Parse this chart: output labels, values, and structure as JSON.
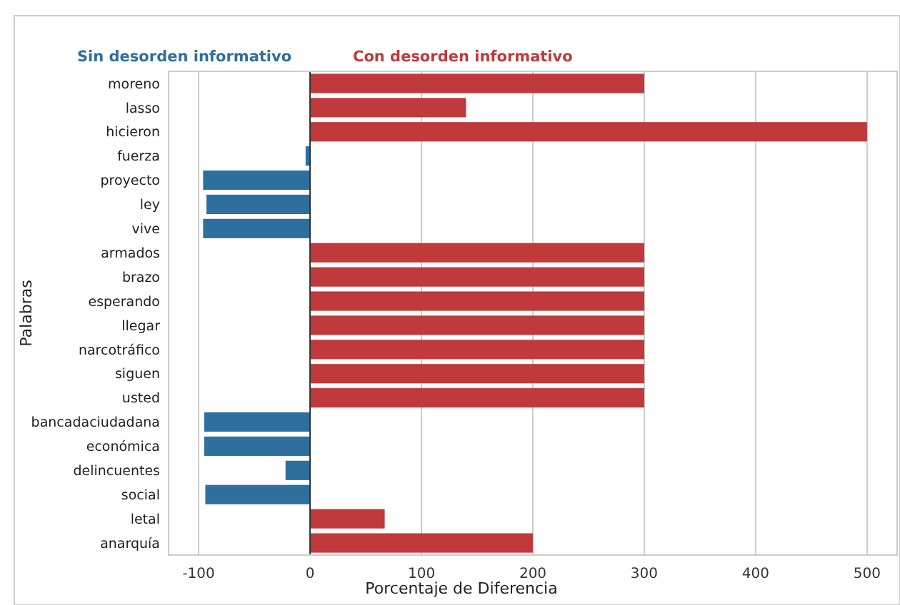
{
  "chart_data": {
    "type": "bar",
    "orientation": "horizontal",
    "xlabel": "Porcentaje de Diferencia",
    "ylabel": "Palabras",
    "categories": [
      "moreno",
      "lasso",
      "hicieron",
      "fuerza",
      "proyecto",
      "ley",
      "vive",
      "armados",
      "brazo",
      "esperando",
      "llegar",
      "narcotráfico",
      "siguen",
      "usted",
      "bancadaciudadana",
      "económica",
      "delincuentes",
      "social",
      "letal",
      "anarquía"
    ],
    "series": [
      {
        "name": "Sin desorden informativo",
        "color": "#2e6f9e",
        "values": [
          null,
          null,
          null,
          -4,
          -96,
          -93,
          -96,
          null,
          null,
          null,
          null,
          null,
          null,
          null,
          -95,
          -95,
          -22,
          -94,
          null,
          null
        ]
      },
      {
        "name": "Con desorden informativo",
        "color": "#c0393b",
        "values": [
          300,
          140,
          500,
          null,
          null,
          null,
          null,
          300,
          300,
          300,
          300,
          300,
          300,
          300,
          null,
          null,
          null,
          null,
          67,
          200
        ]
      }
    ],
    "xlim": [
      -127,
      527
    ],
    "xticks": [
      -100,
      0,
      100,
      200,
      300,
      400,
      500
    ],
    "grid": "x",
    "legend": "top"
  }
}
